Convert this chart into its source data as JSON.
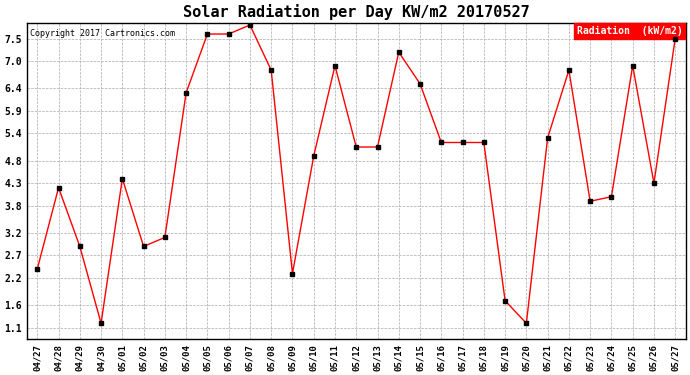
{
  "title": "Solar Radiation per Day KW/m2 20170527",
  "copyright_text": "Copyright 2017 Cartronics.com",
  "legend_label": "Radiation  (kW/m2)",
  "dates": [
    "04/27",
    "04/28",
    "04/29",
    "04/30",
    "05/01",
    "05/02",
    "05/03",
    "05/04",
    "05/05",
    "05/06",
    "05/07",
    "05/08",
    "05/09",
    "05/10",
    "05/11",
    "05/12",
    "05/13",
    "05/14",
    "05/15",
    "05/16",
    "05/17",
    "05/18",
    "05/19",
    "05/20",
    "05/21",
    "05/22",
    "05/23",
    "05/24",
    "05/25",
    "05/26",
    "05/27"
  ],
  "values": [
    2.4,
    4.2,
    2.9,
    1.2,
    4.4,
    2.9,
    3.1,
    6.3,
    7.6,
    7.6,
    7.8,
    6.8,
    2.3,
    4.9,
    6.9,
    5.1,
    5.1,
    7.2,
    6.5,
    5.2,
    5.2,
    5.2,
    1.7,
    1.2,
    5.3,
    6.8,
    3.9,
    4.0,
    6.9,
    4.3,
    7.5
  ],
  "yticks": [
    1.1,
    1.6,
    2.2,
    2.7,
    3.2,
    3.8,
    4.3,
    4.8,
    5.4,
    5.9,
    6.4,
    7.0,
    7.5
  ],
  "ylim": [
    0.85,
    7.85
  ],
  "line_color": "red",
  "marker_color": "black",
  "bg_color": "#ffffff",
  "grid_color": "#aaaaaa",
  "title_fontsize": 11,
  "legend_bg": "red",
  "legend_fg": "white"
}
